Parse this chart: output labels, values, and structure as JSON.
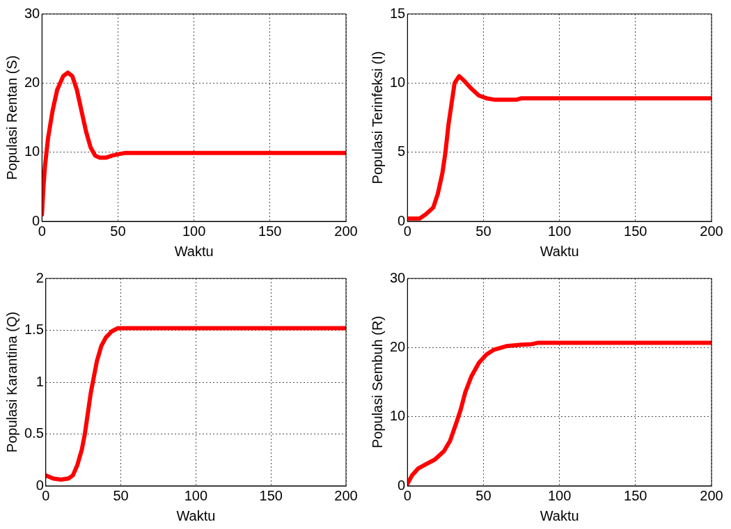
{
  "chart_data": [
    {
      "type": "line",
      "xlabel": "Waktu",
      "ylabel": "Populasi Rentan (S)",
      "grid": true,
      "xlim": [
        0,
        200
      ],
      "xticks": [
        0,
        50,
        100,
        150,
        200
      ],
      "ylim": [
        0,
        30
      ],
      "yticks": [
        0,
        10,
        20,
        30
      ],
      "series": [
        {
          "color": "#ff0000",
          "x": [
            0,
            1,
            2,
            4,
            7,
            10,
            14,
            17,
            20,
            23,
            26,
            29,
            32,
            35,
            38,
            42,
            46,
            50,
            55,
            60,
            200
          ],
          "values": [
            1,
            5,
            8,
            12,
            16,
            19,
            21,
            21.5,
            21,
            19,
            16,
            13,
            10.7,
            9.5,
            9.2,
            9.2,
            9.5,
            9.7,
            9.9,
            9.9,
            9.9
          ]
        }
      ]
    },
    {
      "type": "line",
      "xlabel": "Waktu",
      "ylabel": "Populasi Terinfeksi (I)",
      "grid": true,
      "xlim": [
        0,
        200
      ],
      "xticks": [
        0,
        50,
        100,
        150,
        200
      ],
      "ylim": [
        0,
        15
      ],
      "yticks": [
        0,
        5,
        10,
        15
      ],
      "series": [
        {
          "color": "#ff0000",
          "x": [
            0,
            8,
            12,
            17,
            20,
            23,
            25,
            27,
            29,
            31,
            34,
            37,
            42,
            47,
            52,
            57,
            72,
            75,
            200
          ],
          "values": [
            0.2,
            0.2,
            0.5,
            1,
            2,
            3.5,
            5,
            7,
            8.5,
            10,
            10.5,
            10.2,
            9.6,
            9.1,
            8.9,
            8.8,
            8.8,
            8.9,
            8.9
          ]
        }
      ]
    },
    {
      "type": "line",
      "xlabel": "Waktu",
      "ylabel": "Populasi Karantina (Q)",
      "grid": true,
      "xlim": [
        0,
        200
      ],
      "xticks": [
        0,
        50,
        100,
        150,
        200
      ],
      "ylim": [
        0,
        2
      ],
      "yticks": [
        0,
        0.5,
        1,
        1.5,
        2
      ],
      "series": [
        {
          "color": "#ff0000",
          "x": [
            0,
            5,
            10,
            15,
            18,
            21,
            24,
            26,
            28,
            30,
            32,
            34,
            37,
            40,
            44,
            48,
            200
          ],
          "values": [
            0.1,
            0.07,
            0.06,
            0.07,
            0.1,
            0.2,
            0.35,
            0.5,
            0.7,
            0.9,
            1.05,
            1.2,
            1.35,
            1.43,
            1.49,
            1.52,
            1.52
          ]
        }
      ]
    },
    {
      "type": "line",
      "xlabel": "Waktu",
      "ylabel": "Populasi Sembuh (R)",
      "grid": true,
      "xlim": [
        0,
        200
      ],
      "xticks": [
        0,
        50,
        100,
        150,
        200
      ],
      "ylim": [
        0,
        30
      ],
      "yticks": [
        0,
        10,
        20,
        30
      ],
      "series": [
        {
          "color": "#ff0000",
          "x": [
            0,
            3,
            7,
            12,
            18,
            24,
            28,
            32,
            35,
            38,
            42,
            47,
            52,
            57,
            65,
            75,
            82,
            86,
            200
          ],
          "values": [
            0.3,
            1.5,
            2.5,
            3.1,
            3.8,
            5,
            6.5,
            9,
            11,
            13.5,
            15.8,
            17.8,
            19,
            19.7,
            20.2,
            20.4,
            20.5,
            20.7,
            20.7
          ]
        }
      ]
    }
  ]
}
